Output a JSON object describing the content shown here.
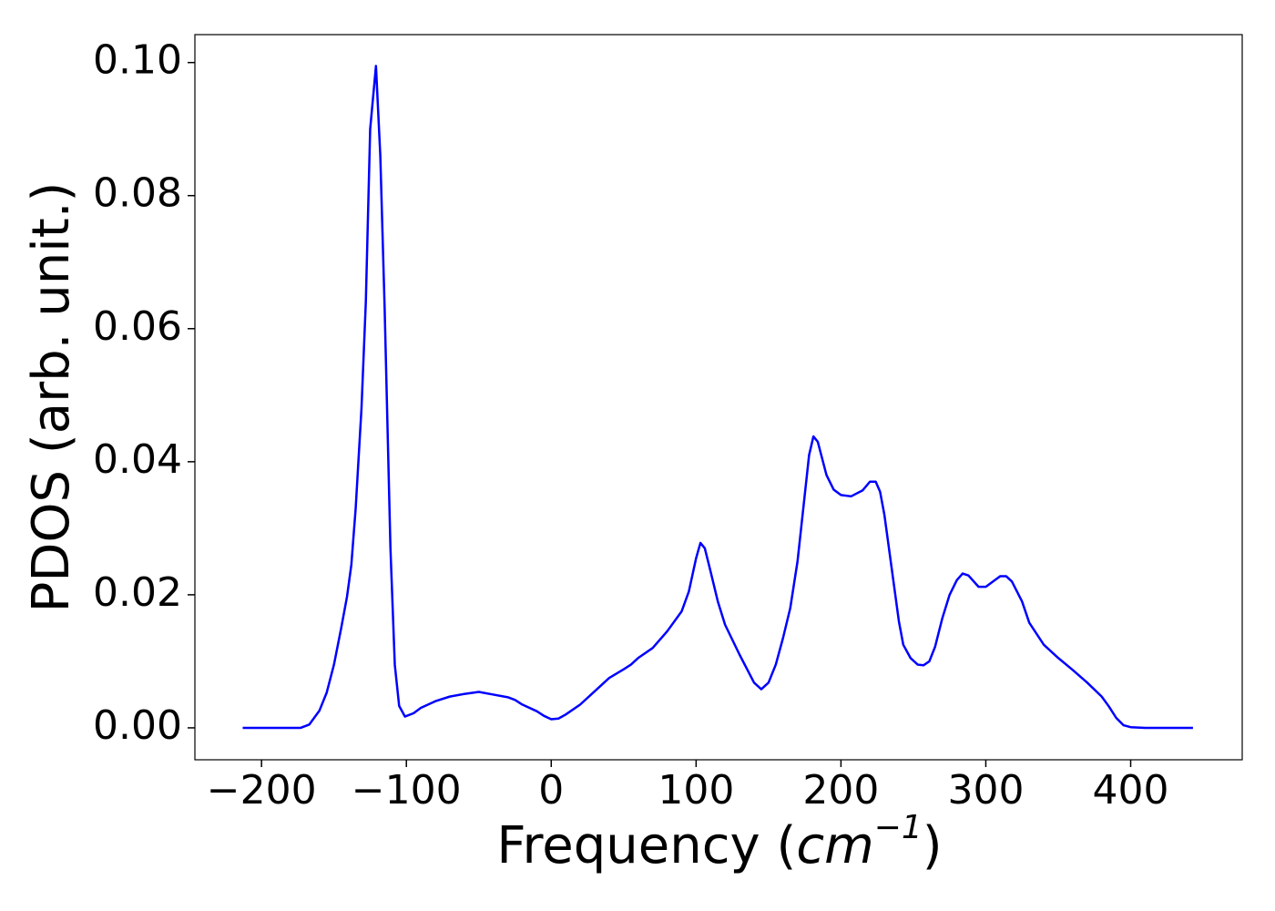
{
  "chart_data": {
    "type": "line",
    "xlabel": {
      "text": "Frequency (",
      "math": "cm",
      "superscript": "−1",
      "close": ")"
    },
    "ylabel": "PDOS (arb. unit.)",
    "series": [
      {
        "color": "#0000ff",
        "x": [
          -213,
          -173,
          -167,
          -160,
          -155,
          -150,
          -145,
          -141,
          -138,
          -135,
          -131,
          -128,
          -125,
          -121,
          -118,
          -115,
          -111,
          -108,
          -105,
          -101,
          -95,
          -90,
          -80,
          -70,
          -60,
          -50,
          -40,
          -30,
          -25,
          -20,
          -10,
          -5,
          0,
          5,
          10,
          20,
          30,
          40,
          50,
          55,
          60,
          70,
          80,
          90,
          95,
          100,
          103,
          106,
          110,
          115,
          120,
          130,
          140,
          145,
          150,
          155,
          160,
          165,
          170,
          175,
          178,
          181,
          184,
          190,
          195,
          200,
          207,
          215,
          220,
          224,
          227,
          230,
          235,
          240,
          243,
          248,
          253,
          257,
          261,
          265,
          270,
          275,
          280,
          284,
          288,
          295,
          300,
          305,
          310,
          314,
          318,
          325,
          330,
          340,
          350,
          360,
          370,
          380,
          385,
          390,
          395,
          400,
          410,
          443
        ],
        "values": [
          0,
          0,
          0.0005,
          0.0026,
          0.0053,
          0.0095,
          0.015,
          0.0197,
          0.0245,
          0.033,
          0.048,
          0.064,
          0.09,
          0.0995,
          0.086,
          0.063,
          0.027,
          0.0095,
          0.0033,
          0.0017,
          0.0022,
          0.003,
          0.004,
          0.0047,
          0.0051,
          0.0054,
          0.005,
          0.0046,
          0.0042,
          0.0035,
          0.0025,
          0.0018,
          0.0013,
          0.0014,
          0.002,
          0.0035,
          0.0055,
          0.0075,
          0.0088,
          0.0095,
          0.0105,
          0.012,
          0.0145,
          0.0175,
          0.0205,
          0.0255,
          0.0278,
          0.027,
          0.0235,
          0.019,
          0.0155,
          0.011,
          0.0068,
          0.0058,
          0.0068,
          0.0095,
          0.0135,
          0.018,
          0.025,
          0.035,
          0.041,
          0.0438,
          0.043,
          0.038,
          0.0358,
          0.035,
          0.0348,
          0.0357,
          0.037,
          0.037,
          0.0355,
          0.032,
          0.024,
          0.016,
          0.0125,
          0.0105,
          0.0095,
          0.0094,
          0.01,
          0.0122,
          0.0165,
          0.02,
          0.0222,
          0.0232,
          0.0229,
          0.0212,
          0.0212,
          0.022,
          0.0228,
          0.0228,
          0.022,
          0.019,
          0.0158,
          0.0125,
          0.0105,
          0.0087,
          0.0068,
          0.0047,
          0.0032,
          0.0015,
          0.0004,
          0.0001,
          0,
          0
        ]
      }
    ],
    "xlim": [
      -246,
      477
    ],
    "ylim": [
      -0.0048,
      0.1042
    ],
    "xticks": [
      {
        "value": -200,
        "label": "−200"
      },
      {
        "value": -100,
        "label": "−100"
      },
      0,
      100,
      200,
      300,
      400
    ],
    "yticks": [
      {
        "value": 0,
        "label": "0.00"
      },
      0.02,
      0.04,
      0.06,
      0.08,
      {
        "value": 0.1,
        "label": "0.10"
      }
    ],
    "grid": false
  }
}
